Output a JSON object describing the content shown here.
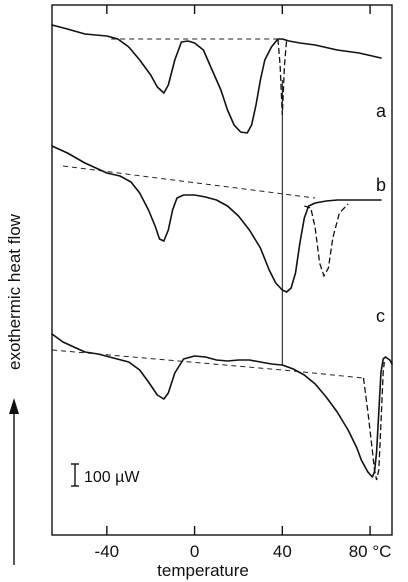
{
  "chart_data": {
    "type": "line",
    "xlabel": "temperature",
    "ylabel": "exothermic heat flow",
    "xlim": [
      -65,
      90
    ],
    "x_ticks": [
      {
        "value": -40,
        "label": "-40"
      },
      {
        "value": 0,
        "label": "0"
      },
      {
        "value": 40,
        "label": "40"
      },
      {
        "value": 80,
        "label": "80 °C"
      }
    ],
    "scale_bar": "100 µW",
    "vertical_marker_x": 40,
    "series": [
      {
        "name": "a",
        "curve": [
          [
            -65,
            0
          ],
          [
            -58,
            4
          ],
          [
            -50,
            9
          ],
          [
            -40,
            11
          ],
          [
            -35,
            14
          ],
          [
            -30,
            22
          ],
          [
            -25,
            35
          ],
          [
            -20,
            50
          ],
          [
            -17,
            62
          ],
          [
            -14,
            68
          ],
          [
            -12,
            60
          ],
          [
            -9,
            35
          ],
          [
            -6,
            17
          ],
          [
            -3,
            16
          ],
          [
            0,
            18
          ],
          [
            4,
            25
          ],
          [
            8,
            45
          ],
          [
            12,
            65
          ],
          [
            15,
            85
          ],
          [
            18,
            100
          ],
          [
            21,
            107
          ],
          [
            24,
            108
          ],
          [
            26,
            100
          ],
          [
            28,
            80
          ],
          [
            30,
            55
          ],
          [
            32,
            35
          ],
          [
            35,
            22
          ],
          [
            38,
            14
          ],
          [
            40,
            14
          ],
          [
            43,
            16
          ],
          [
            48,
            18
          ],
          [
            55,
            20
          ],
          [
            65,
            25
          ],
          [
            75,
            28
          ],
          [
            85,
            33
          ]
        ],
        "baseline": [
          [
            -38,
            14
          ],
          [
            38,
            14
          ]
        ],
        "alt_curve": [
          [
            38,
            14
          ],
          [
            39,
            40
          ],
          [
            40,
            90
          ],
          [
            41,
            40
          ],
          [
            42,
            14
          ]
        ]
      },
      {
        "name": "b",
        "curve": [
          [
            -65,
            28
          ],
          [
            -58,
            35
          ],
          [
            -50,
            45
          ],
          [
            -45,
            50
          ],
          [
            -40,
            55
          ],
          [
            -34,
            58
          ],
          [
            -29,
            64
          ],
          [
            -25,
            75
          ],
          [
            -21,
            92
          ],
          [
            -18,
            108
          ],
          [
            -16,
            121
          ],
          [
            -14,
            123
          ],
          [
            -12,
            112
          ],
          [
            -10,
            92
          ],
          [
            -8,
            80
          ],
          [
            -5,
            77
          ],
          [
            0,
            77
          ],
          [
            5,
            79
          ],
          [
            10,
            82
          ],
          [
            15,
            88
          ],
          [
            20,
            98
          ],
          [
            25,
            112
          ],
          [
            30,
            130
          ],
          [
            34,
            152
          ],
          [
            37,
            165
          ],
          [
            40,
            172
          ],
          [
            42,
            174
          ],
          [
            44,
            170
          ],
          [
            46,
            155
          ],
          [
            48,
            125
          ],
          [
            50,
            100
          ],
          [
            52,
            88
          ],
          [
            55,
            85
          ],
          [
            60,
            83
          ],
          [
            65,
            82
          ],
          [
            70,
            82
          ],
          [
            75,
            82
          ],
          [
            80,
            82
          ],
          [
            85,
            82
          ]
        ],
        "baseline": [
          [
            -60,
            48
          ],
          [
            55,
            80
          ]
        ],
        "alt_curve": [
          [
            50,
            88
          ],
          [
            53,
            90
          ],
          [
            55,
            110
          ],
          [
            57,
            145
          ],
          [
            59,
            158
          ],
          [
            61,
            150
          ],
          [
            63,
            120
          ],
          [
            66,
            95
          ],
          [
            70,
            86
          ]
        ]
      },
      {
        "name": "c",
        "curve": [
          [
            -65,
            72
          ],
          [
            -60,
            80
          ],
          [
            -55,
            85
          ],
          [
            -50,
            90
          ],
          [
            -44,
            92
          ],
          [
            -37,
            96
          ],
          [
            -30,
            100
          ],
          [
            -25,
            108
          ],
          [
            -21,
            120
          ],
          [
            -17,
            133
          ],
          [
            -14,
            137
          ],
          [
            -12,
            131
          ],
          [
            -9,
            111
          ],
          [
            -5,
            97
          ],
          [
            0,
            94
          ],
          [
            5,
            95
          ],
          [
            10,
            98
          ],
          [
            15,
            99
          ],
          [
            20,
            98
          ],
          [
            25,
            98
          ],
          [
            30,
            100
          ],
          [
            35,
            102
          ],
          [
            40,
            103
          ],
          [
            45,
            107
          ],
          [
            50,
            113
          ],
          [
            55,
            122
          ],
          [
            60,
            135
          ],
          [
            65,
            150
          ],
          [
            70,
            168
          ],
          [
            74,
            186
          ],
          [
            76,
            198
          ],
          [
            79,
            210
          ],
          [
            81,
            215
          ],
          [
            82,
            210
          ],
          [
            83,
            190
          ],
          [
            84,
            150
          ],
          [
            85,
            110
          ],
          [
            86,
            97
          ],
          [
            87,
            95
          ],
          [
            89,
            98
          ],
          [
            90,
            102
          ]
        ],
        "baseline": [
          [
            -65,
            88
          ],
          [
            40,
            108
          ],
          [
            77,
            116
          ]
        ],
        "alt_curve": [
          [
            77,
            116
          ],
          [
            79,
            150
          ],
          [
            81,
            188
          ],
          [
            82,
            208
          ],
          [
            83,
            218
          ],
          [
            84,
            208
          ],
          [
            85,
            160
          ],
          [
            86,
            110
          ],
          [
            86.5,
            100
          ]
        ]
      }
    ]
  }
}
